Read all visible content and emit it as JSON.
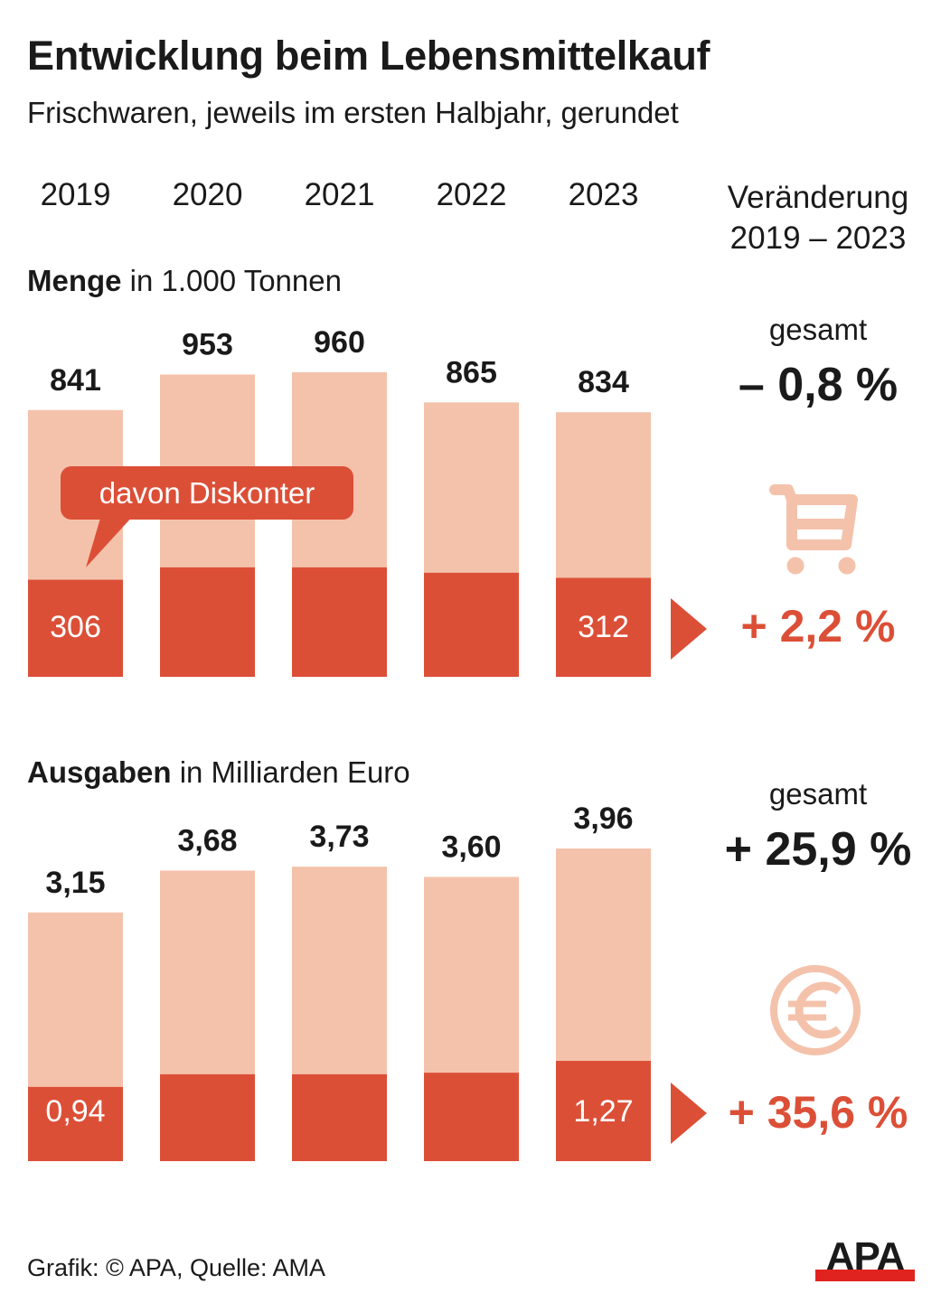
{
  "title": "Entwicklung beim Lebensmittelkauf",
  "subtitle": "Frischwaren, jeweils im ersten Halbjahr, gerundet",
  "years": [
    "2019",
    "2020",
    "2021",
    "2022",
    "2023"
  ],
  "change_header": {
    "line1": "Veränderung",
    "line2": "2019 – 2023"
  },
  "colors": {
    "total": "#f4c2ab",
    "discounter": "#dc4f37",
    "text": "#1a1a1a",
    "white": "#ffffff",
    "apa_red": "#e1231f"
  },
  "menge": {
    "label_bold": "Menge",
    "label_rest": " in 1.000 Tonnen",
    "callout": "davon Diskonter",
    "gesamt_label": "gesamt",
    "total_change": "– 0,8 %",
    "discounter_change": "+ 2,2 %",
    "icon": "shopping-cart-icon"
  },
  "ausgaben": {
    "label_bold": "Ausgaben",
    "label_rest": " in Milliarden Euro",
    "gesamt_label": "gesamt",
    "total_change": "+ 25,9 %",
    "discounter_change": "+ 35,6 %",
    "icon": "euro-coin-icon"
  },
  "source": "Grafik: © APA, Quelle: AMA",
  "logo": "APA",
  "chart_data": [
    {
      "type": "bar",
      "title": "Menge in 1.000 Tonnen",
      "categories": [
        "2019",
        "2020",
        "2021",
        "2022",
        "2023"
      ],
      "series": [
        {
          "name": "gesamt",
          "values": [
            841,
            953,
            960,
            865,
            834
          ],
          "labels": [
            "841",
            "953",
            "960",
            "865",
            "834"
          ]
        },
        {
          "name": "davon Diskonter",
          "values": [
            306,
            345,
            345,
            328,
            312
          ],
          "labels": [
            "306",
            "",
            "",
            "",
            "312"
          ]
        }
      ],
      "ylim": [
        0,
        960
      ],
      "grid": false,
      "xlabel": "",
      "ylabel": ""
    },
    {
      "type": "bar",
      "title": "Ausgaben in Milliarden Euro",
      "categories": [
        "2019",
        "2020",
        "2021",
        "2022",
        "2023"
      ],
      "series": [
        {
          "name": "gesamt",
          "values": [
            3.15,
            3.68,
            3.73,
            3.6,
            3.96
          ],
          "labels": [
            "3,15",
            "3,68",
            "3,73",
            "3,60",
            "3,96"
          ]
        },
        {
          "name": "davon Diskonter",
          "values": [
            0.94,
            1.1,
            1.1,
            1.12,
            1.27
          ],
          "labels": [
            "0,94",
            "",
            "",
            "",
            "1,27"
          ]
        }
      ],
      "ylim": [
        0,
        3.96
      ],
      "grid": false,
      "xlabel": "",
      "ylabel": ""
    }
  ]
}
